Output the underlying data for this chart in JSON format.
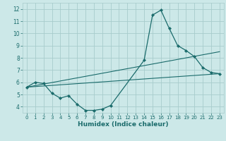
{
  "xlabel": "Humidex (Indice chaleur)",
  "x": [
    0,
    1,
    2,
    3,
    4,
    5,
    6,
    7,
    8,
    9,
    10,
    11,
    12,
    13,
    14,
    15,
    16,
    17,
    18,
    19,
    20,
    21,
    22,
    23
  ],
  "y_main": [
    5.6,
    6.0,
    5.9,
    5.1,
    4.7,
    4.9,
    4.2,
    3.7,
    3.7,
    3.8,
    4.1,
    null,
    null,
    null,
    7.8,
    11.5,
    11.9,
    10.4,
    9.0,
    8.6,
    8.1,
    7.2,
    6.8,
    6.7
  ],
  "y_line1_start": 5.6,
  "y_line1_end": 6.7,
  "y_line2_start": 5.6,
  "y_line2_end": 8.5,
  "line_color": "#1a6b6b",
  "bg_color": "#cce8e8",
  "grid_color": "#a8cccc",
  "xlim": [
    -0.5,
    23.5
  ],
  "ylim": [
    3.5,
    12.5
  ],
  "yticks": [
    4,
    5,
    6,
    7,
    8,
    9,
    10,
    11,
    12
  ],
  "xtick_fontsize": 5.0,
  "ytick_fontsize": 5.5,
  "xlabel_fontsize": 6.5
}
